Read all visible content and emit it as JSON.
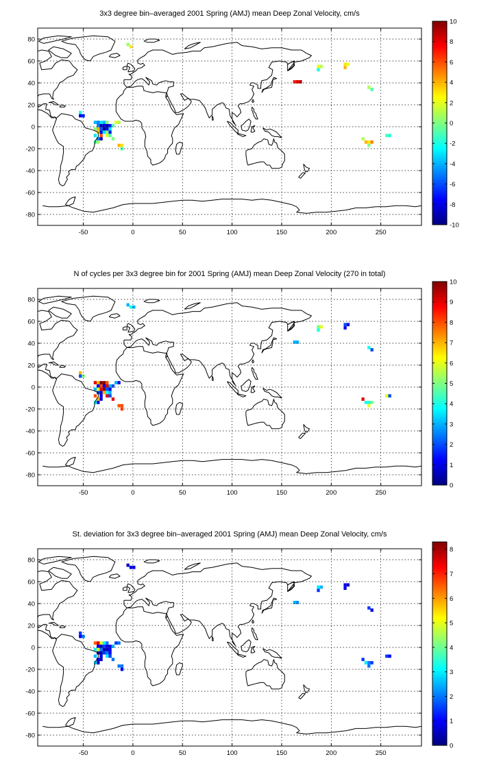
{
  "map_data": {
    "x_ticks": [
      "-50",
      "0",
      "50",
      "100",
      "150",
      "200",
      "250"
    ],
    "y_ticks": [
      "80",
      "60",
      "40",
      "20",
      "0",
      "-20",
      "-40",
      "-60",
      "-80"
    ],
    "xlim": [
      -96,
      291
    ],
    "ylim": [
      -90,
      90
    ],
    "grid": true
  },
  "chart_data": [
    {
      "type": "heatmap",
      "title": "3x3 degree bin–averaged 2001 Spring (AMJ) mean Deep Zonal Velocity, cm/s",
      "xlim": [
        -96,
        291
      ],
      "ylim": [
        -90,
        90
      ],
      "colorbar": {
        "min": -10,
        "max": 10,
        "ticks": [
          "10",
          "8",
          "6",
          "4",
          "2",
          "0",
          "-2",
          "-4",
          "-6",
          "-8",
          "-10"
        ]
      },
      "colormap": "jet",
      "cells": [
        [
          -5,
          75,
          0.5
        ],
        [
          -2,
          73,
          3
        ],
        [
          163,
          41,
          7
        ],
        [
          166,
          41,
          8
        ],
        [
          169,
          41,
          9
        ],
        [
          187,
          55,
          2
        ],
        [
          190,
          55,
          1
        ],
        [
          187,
          52,
          -2
        ],
        [
          214,
          57,
          3
        ],
        [
          217,
          57,
          2
        ],
        [
          214,
          54,
          4
        ],
        [
          238,
          36,
          1
        ],
        [
          241,
          34,
          -1
        ],
        [
          -53,
          13,
          -2
        ],
        [
          -50,
          10,
          -7
        ],
        [
          -53,
          10,
          -8
        ],
        [
          -38,
          4,
          -4
        ],
        [
          -35,
          4,
          -5
        ],
        [
          -32,
          4,
          -3
        ],
        [
          -29,
          4,
          -4
        ],
        [
          -26,
          4,
          0
        ],
        [
          -17,
          4,
          2
        ],
        [
          -14,
          4,
          1
        ],
        [
          -35,
          1,
          -5
        ],
        [
          -32,
          1,
          -9
        ],
        [
          -29,
          1,
          -8
        ],
        [
          -26,
          1,
          -9
        ],
        [
          -23,
          1,
          -7
        ],
        [
          -20,
          1,
          -1
        ],
        [
          -38,
          -2,
          0
        ],
        [
          -35,
          -2,
          4
        ],
        [
          -32,
          -2,
          -6
        ],
        [
          -29,
          -2,
          -10
        ],
        [
          -26,
          -2,
          -8
        ],
        [
          -23,
          -2,
          -3
        ],
        [
          -35,
          -5,
          3
        ],
        [
          -32,
          -5,
          -8
        ],
        [
          -29,
          -5,
          -3
        ],
        [
          -26,
          -5,
          0
        ],
        [
          -23,
          -5,
          -7
        ],
        [
          -38,
          -8,
          -3
        ],
        [
          -32,
          -8,
          6
        ],
        [
          -26,
          -8,
          2
        ],
        [
          -23,
          -8,
          -1
        ],
        [
          -35,
          -11,
          -5
        ],
        [
          -32,
          -11,
          -9
        ],
        [
          -20,
          -11,
          0
        ],
        [
          -38,
          -14,
          -1
        ],
        [
          -35,
          -14,
          1
        ],
        [
          -14,
          -17,
          4
        ],
        [
          -11,
          -17,
          3
        ],
        [
          -11,
          -20,
          -1
        ],
        [
          232,
          -11,
          1
        ],
        [
          235,
          -14,
          4
        ],
        [
          238,
          -14,
          3
        ],
        [
          241,
          -14,
          5
        ],
        [
          238,
          -17,
          0
        ],
        [
          256,
          -8,
          -1
        ],
        [
          259,
          -8,
          -2
        ]
      ]
    },
    {
      "type": "heatmap",
      "title": "N of cycles per 3x3 degree bin for 2001 Spring (AMJ) mean Deep Zonal Velocity (270 in total)",
      "xlim": [
        -96,
        291
      ],
      "ylim": [
        -90,
        90
      ],
      "colorbar": {
        "min": 0,
        "max": 10,
        "ticks": [
          "10",
          "9",
          "8",
          "7",
          "6",
          "5",
          "4",
          "3",
          "2",
          "1",
          "0"
        ]
      },
      "colormap": "jet",
      "cells": [
        [
          -5,
          75,
          3
        ],
        [
          -2,
          73,
          4
        ],
        [
          1,
          73,
          3
        ],
        [
          163,
          41,
          3
        ],
        [
          166,
          41,
          3
        ],
        [
          187,
          55,
          5
        ],
        [
          190,
          55,
          6
        ],
        [
          187,
          52,
          4
        ],
        [
          214,
          57,
          2
        ],
        [
          217,
          57,
          1
        ],
        [
          214,
          54,
          1
        ],
        [
          238,
          36,
          4
        ],
        [
          241,
          34,
          2
        ],
        [
          -53,
          13,
          7
        ],
        [
          -50,
          10,
          5
        ],
        [
          -53,
          10,
          2
        ],
        [
          -38,
          4,
          9
        ],
        [
          -35,
          4,
          7
        ],
        [
          -32,
          4,
          10
        ],
        [
          -29,
          4,
          10
        ],
        [
          -26,
          4,
          8
        ],
        [
          -17,
          4,
          3
        ],
        [
          -14,
          4,
          1
        ],
        [
          -35,
          1,
          1
        ],
        [
          -32,
          1,
          8
        ],
        [
          -29,
          1,
          1
        ],
        [
          -26,
          1,
          9
        ],
        [
          -23,
          1,
          3
        ],
        [
          -20,
          1,
          2
        ],
        [
          -38,
          -2,
          3
        ],
        [
          -35,
          -2,
          6
        ],
        [
          -32,
          -2,
          9
        ],
        [
          -29,
          -2,
          10
        ],
        [
          -26,
          -2,
          2
        ],
        [
          -23,
          -2,
          1
        ],
        [
          -35,
          -5,
          2
        ],
        [
          -32,
          -5,
          1
        ],
        [
          -29,
          -5,
          7
        ],
        [
          -26,
          -5,
          4
        ],
        [
          -23,
          -5,
          3
        ],
        [
          -38,
          -8,
          8
        ],
        [
          -32,
          -8,
          1
        ],
        [
          -26,
          -8,
          9
        ],
        [
          -23,
          -8,
          2
        ],
        [
          -35,
          -11,
          7
        ],
        [
          -32,
          -11,
          1
        ],
        [
          -20,
          -11,
          9
        ],
        [
          -38,
          -14,
          4
        ],
        [
          -35,
          -14,
          1
        ],
        [
          -14,
          -17,
          8
        ],
        [
          -11,
          -17,
          8
        ],
        [
          -11,
          -20,
          8
        ],
        [
          232,
          -11,
          9
        ],
        [
          235,
          -14,
          4
        ],
        [
          238,
          -14,
          4
        ],
        [
          241,
          -14,
          5
        ],
        [
          238,
          -17,
          6
        ],
        [
          256,
          -8,
          6
        ],
        [
          259,
          -8,
          2
        ]
      ]
    },
    {
      "type": "heatmap",
      "title": "St. deviation for 3x3 degree bin–averaged 2001 Spring (AMJ) mean Deep Zonal Velocity, cm/s",
      "xlim": [
        -96,
        291
      ],
      "ylim": [
        -90,
        90
      ],
      "colorbar": {
        "min": 0,
        "max": 8.3,
        "ticks": [
          "8",
          "7",
          "6",
          "5",
          "4",
          "3",
          "2",
          "1",
          "0"
        ]
      },
      "colormap": "jet",
      "cells": [
        [
          -5,
          75,
          0.5
        ],
        [
          -2,
          73,
          1
        ],
        [
          1,
          73,
          0.8
        ],
        [
          163,
          41,
          2.5
        ],
        [
          166,
          41,
          2.2
        ],
        [
          187,
          55,
          3
        ],
        [
          190,
          55,
          2.5
        ],
        [
          187,
          52,
          1.5
        ],
        [
          214,
          57,
          1
        ],
        [
          217,
          57,
          0.5
        ],
        [
          214,
          54,
          0.8
        ],
        [
          238,
          36,
          1.5
        ],
        [
          241,
          34,
          1
        ],
        [
          -53,
          13,
          1.5
        ],
        [
          -50,
          10,
          2
        ],
        [
          -53,
          10,
          1
        ],
        [
          -38,
          4,
          6.5
        ],
        [
          -35,
          4,
          7.5
        ],
        [
          -32,
          4,
          5
        ],
        [
          -29,
          4,
          3
        ],
        [
          -26,
          4,
          2
        ],
        [
          -17,
          4,
          1.5
        ],
        [
          -14,
          4,
          2
        ],
        [
          -35,
          1,
          1
        ],
        [
          -32,
          1,
          0.5
        ],
        [
          -29,
          1,
          1.5
        ],
        [
          -26,
          1,
          1
        ],
        [
          -23,
          1,
          0.8
        ],
        [
          -20,
          1,
          2.5
        ],
        [
          -38,
          -2,
          3
        ],
        [
          -35,
          -2,
          5
        ],
        [
          -32,
          -2,
          2
        ],
        [
          -29,
          -2,
          0.5
        ],
        [
          -26,
          -2,
          0.3
        ],
        [
          -23,
          -2,
          1
        ],
        [
          -35,
          -5,
          0.5
        ],
        [
          -32,
          -5,
          0.3
        ],
        [
          -29,
          -5,
          1.5
        ],
        [
          -26,
          -5,
          2
        ],
        [
          -23,
          -5,
          1
        ],
        [
          -38,
          -8,
          2.5
        ],
        [
          -32,
          -8,
          0.8
        ],
        [
          -26,
          -8,
          3
        ],
        [
          -23,
          -8,
          1.5
        ],
        [
          -35,
          -11,
          1
        ],
        [
          -32,
          -11,
          0.5
        ],
        [
          -20,
          -11,
          2
        ],
        [
          -38,
          -14,
          3
        ],
        [
          -35,
          -14,
          0.5
        ],
        [
          -14,
          -17,
          2
        ],
        [
          -11,
          -17,
          2
        ],
        [
          -11,
          -20,
          1
        ],
        [
          232,
          -11,
          1.5
        ],
        [
          235,
          -14,
          3
        ],
        [
          238,
          -14,
          2
        ],
        [
          241,
          -14,
          1.5
        ],
        [
          238,
          -17,
          2
        ],
        [
          256,
          -8,
          1.5
        ],
        [
          259,
          -8,
          1
        ]
      ]
    }
  ]
}
